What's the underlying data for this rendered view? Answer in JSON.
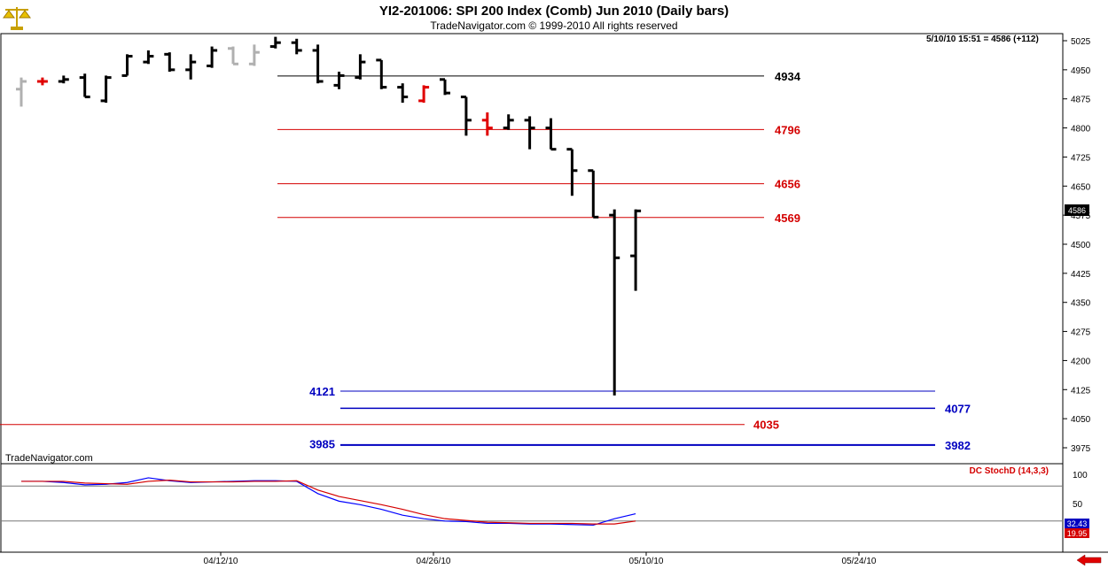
{
  "header": {
    "title": "YI2-201006:  SPI 200 Index (Comb) Jun 2010  (Daily bars)",
    "subtitle": "TradeNavigator.com © 1999-2010 All rights reserved"
  },
  "quote": "5/10/10 15:51 = 4586 (+112)",
  "watermark": "TradeNavigator.com",
  "colors": {
    "bars": "#000000",
    "up_cross": "#e00000",
    "gray_bar": "#b0b0b0",
    "red_level": "#d40000",
    "blue_level": "#0000c0",
    "black_level": "#000000",
    "stoch_k": "#0000ff",
    "stoch_d": "#d40000"
  },
  "chart_data": [
    {
      "type": "ohlc",
      "ylim": [
        3950,
        5050
      ],
      "y_ticks": [
        "5025",
        "4950",
        "4875",
        "4800",
        "4725",
        "4650",
        "4575",
        "4500",
        "4425",
        "4350",
        "4275",
        "4200",
        "4125",
        "4050",
        "3975"
      ],
      "x_ticks": [
        "04/12/10",
        "04/26/10",
        "05/10/10",
        "05/24/10"
      ],
      "last_price_label": "4586",
      "bars": [
        {
          "o": 4900,
          "h": 4930,
          "l": 4855,
          "c": 4920,
          "style": "gray"
        },
        {
          "o": 4920,
          "h": 4930,
          "l": 4910,
          "c": 4920,
          "style": "red"
        },
        {
          "o": 4920,
          "h": 4935,
          "l": 4915,
          "c": 4925
        },
        {
          "o": 4930,
          "h": 4940,
          "l": 4880,
          "c": 4880
        },
        {
          "o": 4870,
          "h": 4935,
          "l": 4865,
          "c": 4930
        },
        {
          "o": 4935,
          "h": 4990,
          "l": 4935,
          "c": 4985
        },
        {
          "o": 4970,
          "h": 5000,
          "l": 4965,
          "c": 4985
        },
        {
          "o": 4990,
          "h": 4995,
          "l": 4945,
          "c": 4950
        },
        {
          "o": 4950,
          "h": 4990,
          "l": 4925,
          "c": 4970
        },
        {
          "o": 4960,
          "h": 5010,
          "l": 4955,
          "c": 5000
        },
        {
          "o": 5005,
          "h": 5010,
          "l": 4965,
          "c": 4965,
          "style": "gray"
        },
        {
          "o": 4965,
          "h": 5015,
          "l": 4960,
          "c": 4995,
          "style": "gray"
        },
        {
          "o": 5010,
          "h": 5035,
          "l": 5005,
          "c": 5020
        },
        {
          "o": 5020,
          "h": 5030,
          "l": 4990,
          "c": 5000
        },
        {
          "o": 5000,
          "h": 5015,
          "l": 4915,
          "c": 4920
        },
        {
          "o": 4910,
          "h": 4945,
          "l": 4900,
          "c": 4935
        },
        {
          "o": 4930,
          "h": 4990,
          "l": 4925,
          "c": 4970
        },
        {
          "o": 4975,
          "h": 4975,
          "l": 4900,
          "c": 4905
        },
        {
          "o": 4905,
          "h": 4915,
          "l": 4865,
          "c": 4880
        },
        {
          "o": 4870,
          "h": 4910,
          "l": 4865,
          "c": 4905,
          "style": "red"
        },
        {
          "o": 4925,
          "h": 4925,
          "l": 4885,
          "c": 4890
        },
        {
          "o": 4880,
          "h": 4880,
          "l": 4780,
          "c": 4820
        },
        {
          "o": 4820,
          "h": 4840,
          "l": 4780,
          "c": 4800,
          "style": "red"
        },
        {
          "o": 4800,
          "h": 4835,
          "l": 4795,
          "c": 4820
        },
        {
          "o": 4820,
          "h": 4830,
          "l": 4745,
          "c": 4800
        },
        {
          "o": 4800,
          "h": 4825,
          "l": 4745,
          "c": 4745
        },
        {
          "o": 4745,
          "h": 4745,
          "l": 4625,
          "c": 4690
        },
        {
          "o": 4690,
          "h": 4690,
          "l": 4570,
          "c": 4570
        },
        {
          "o": 4575,
          "h": 4590,
          "l": 4110,
          "c": 4465
        },
        {
          "o": 4470,
          "h": 4590,
          "l": 4380,
          "c": 4586
        }
      ],
      "levels": [
        {
          "value": 4934,
          "label": "4934",
          "color": "black"
        },
        {
          "value": 4796,
          "label": "4796",
          "color": "red"
        },
        {
          "value": 4656,
          "label": "4656",
          "color": "red"
        },
        {
          "value": 4569,
          "label": "4569",
          "color": "red"
        },
        {
          "value": 4121,
          "label": "4121",
          "color": "blue"
        },
        {
          "value": 4077,
          "label": "4077",
          "color": "blue"
        },
        {
          "value": 4035,
          "label": "4035",
          "color": "red"
        },
        {
          "value": 3985,
          "label": "3985",
          "color": "blue"
        },
        {
          "value": 3982,
          "label": "3982",
          "color": "blue"
        }
      ]
    },
    {
      "type": "line",
      "title": "DC StochD (14,3,3)",
      "ylim": [
        0,
        110
      ],
      "y_ticks": [
        "100",
        "50",
        "0"
      ],
      "reference_lines": [
        80,
        20
      ],
      "last_values": [
        "32.43",
        "19.95"
      ],
      "series": [
        {
          "values": [
            88,
            88,
            86,
            82,
            83,
            86,
            94,
            89,
            86,
            87,
            88,
            89,
            89,
            88,
            67,
            54,
            48,
            40,
            30,
            24,
            20,
            19,
            16,
            16,
            15,
            15,
            14,
            13,
            24,
            32.43
          ]
        },
        {
          "values": [
            88,
            88,
            88,
            85,
            84,
            83,
            88,
            90,
            87,
            87,
            87,
            88,
            88,
            89,
            73,
            62,
            55,
            48,
            40,
            31,
            24,
            21,
            18,
            17,
            16,
            16,
            16,
            15,
            15,
            19.95
          ]
        }
      ]
    }
  ]
}
